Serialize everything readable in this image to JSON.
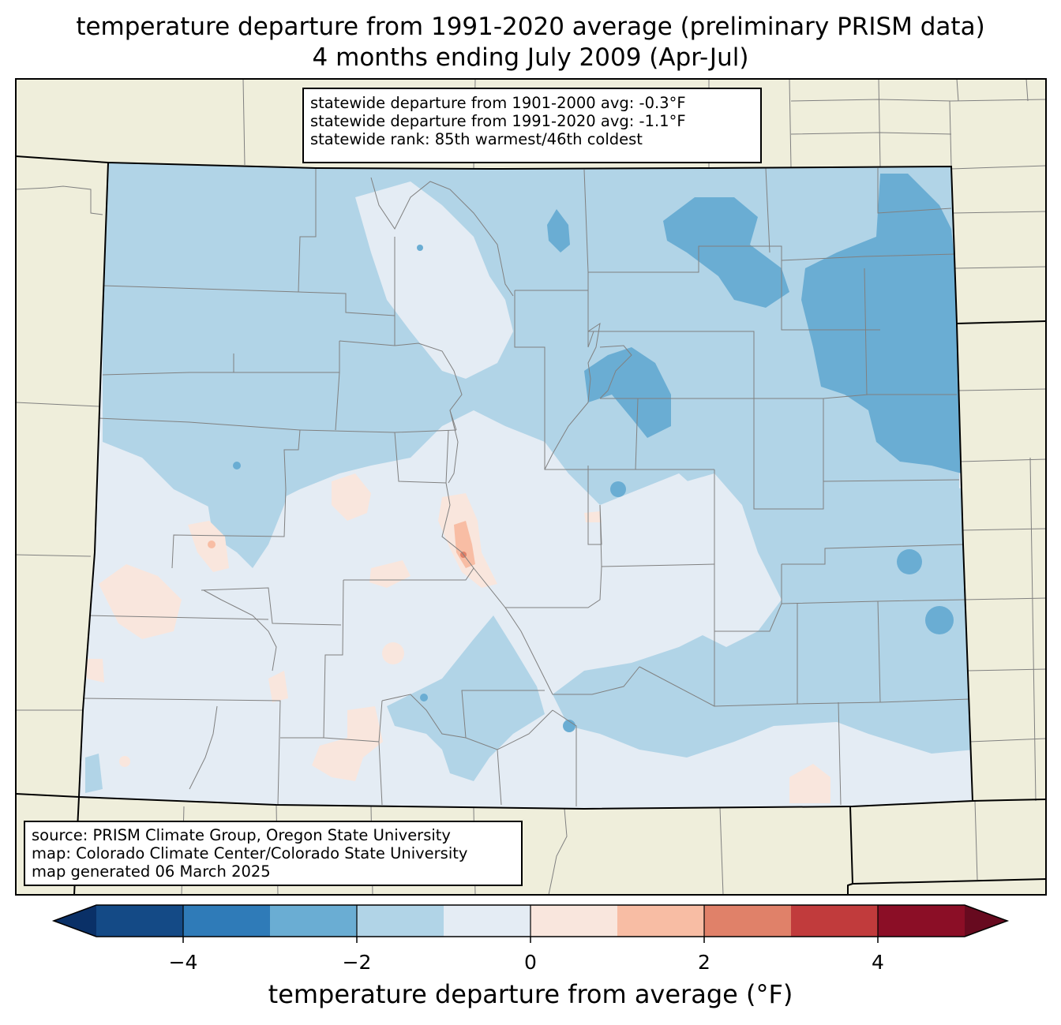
{
  "title": {
    "line1": "temperature departure from 1991-2020 average (preliminary PRISM data)",
    "line2": "4 months ending July 2009 (Apr-Jul)"
  },
  "stats": {
    "line1": "statewide departure from 1901-2000 avg: -0.3°F",
    "line2": "statewide departure from 1991-2020 avg: -1.1°F",
    "line3": "statewide rank: 85th warmest/46th coldest"
  },
  "credits": {
    "line1": "source: PRISM Climate Group, Oregon State University",
    "line2": "map: Colorado Climate Center/Colorado State University",
    "line3": "map generated 06 March 2025"
  },
  "colorbar": {
    "label": "temperature departure from average (°F)",
    "ticks": [
      "−4",
      "−2",
      "0",
      "2",
      "4"
    ],
    "tick_values": [
      -4,
      -2,
      0,
      2,
      4
    ],
    "range": [
      -5,
      5
    ],
    "under_color": "#0a3067",
    "over_color": "#670a1f",
    "bins": [
      {
        "from": -5,
        "to": -4,
        "color": "#144a86"
      },
      {
        "from": -4,
        "to": -3,
        "color": "#2f7bb8"
      },
      {
        "from": -3,
        "to": -2,
        "color": "#6aadd3"
      },
      {
        "from": -2,
        "to": -1,
        "color": "#b1d4e7"
      },
      {
        "from": -1,
        "to": 0,
        "color": "#e4ecf4"
      },
      {
        "from": 0,
        "to": 1,
        "color": "#f9e6dd"
      },
      {
        "from": 1,
        "to": 2,
        "color": "#f8bda4"
      },
      {
        "from": 2,
        "to": 3,
        "color": "#e08169"
      },
      {
        "from": 3,
        "to": 4,
        "color": "#c13b3c"
      },
      {
        "from": 4,
        "to": 5,
        "color": "#8b0e26"
      }
    ]
  },
  "map": {
    "background_color": "#efeedb",
    "state_border_color": "#000000",
    "county_line_color": "#808080"
  }
}
